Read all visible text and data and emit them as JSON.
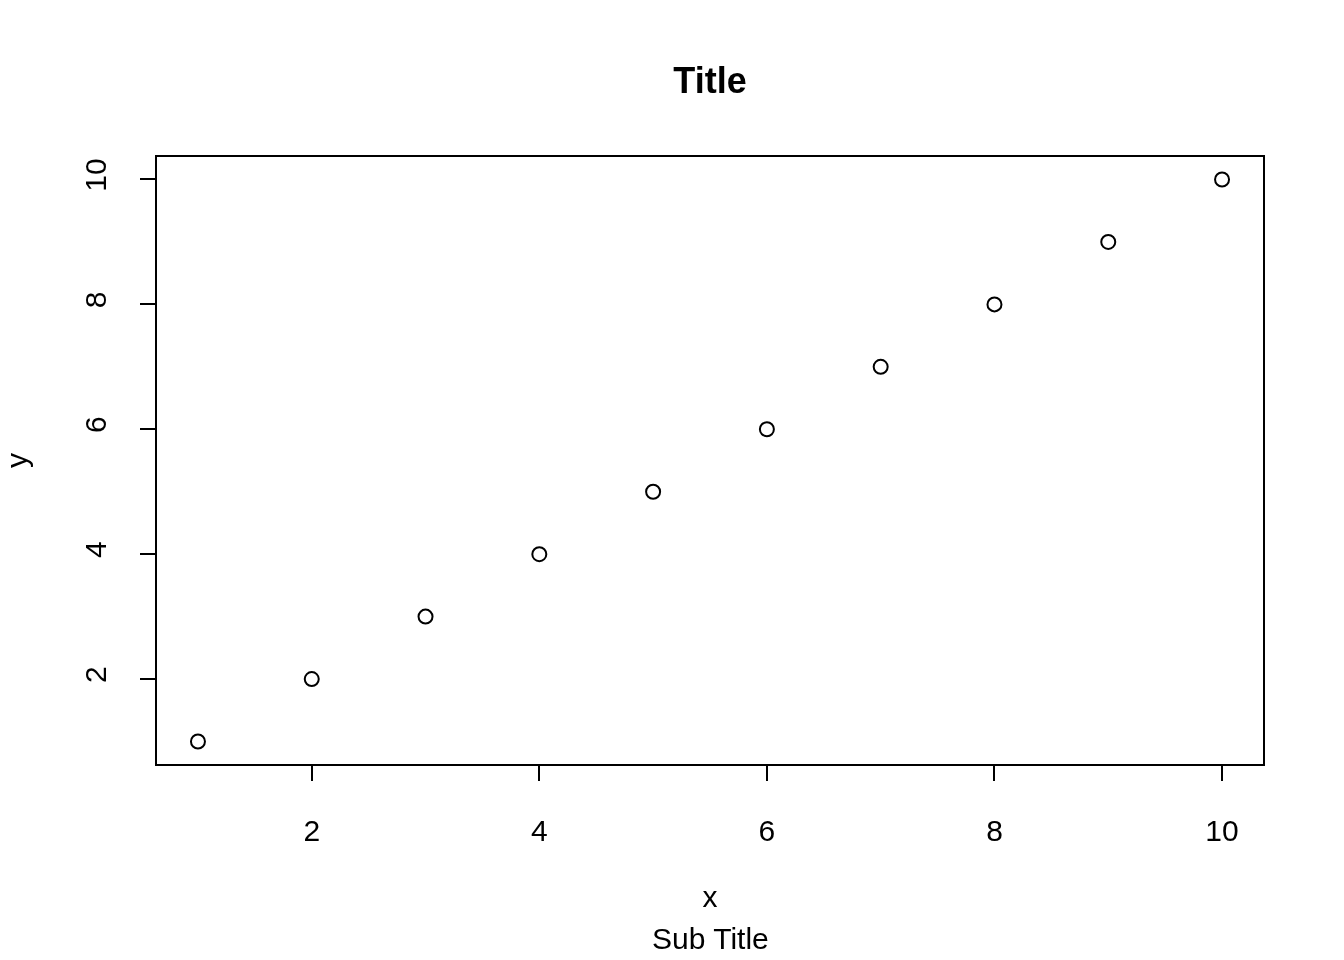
{
  "chart_data": {
    "type": "scatter",
    "title": "Title",
    "subtitle": "Sub Title",
    "xlabel": "x",
    "ylabel": "y",
    "x": [
      1,
      2,
      3,
      4,
      5,
      6,
      7,
      8,
      9,
      10
    ],
    "values": [
      1,
      2,
      3,
      4,
      5,
      6,
      7,
      8,
      9,
      10
    ],
    "color": "#000000",
    "marker": "circle",
    "xlim": [
      0.64,
      10.36
    ],
    "ylim": [
      0.64,
      10.36
    ],
    "xticks": [
      2,
      4,
      6,
      8,
      10
    ],
    "yticks": [
      2,
      4,
      6,
      8,
      10
    ]
  }
}
